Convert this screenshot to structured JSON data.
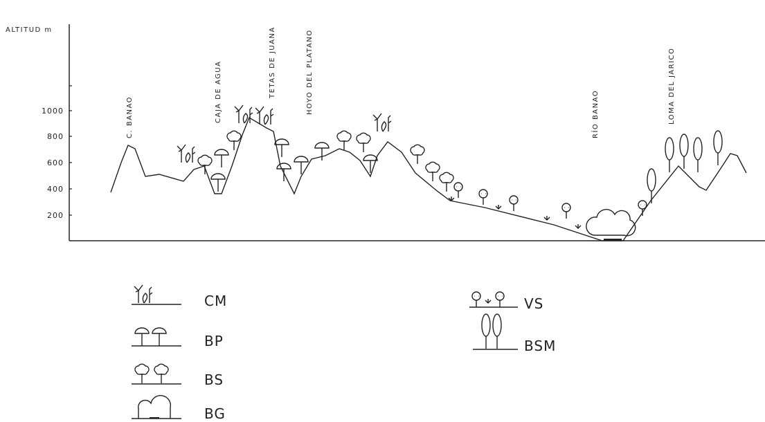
{
  "axis": {
    "label": "ALTITUD m",
    "ticks": [
      "1000",
      "800",
      "600",
      "400",
      "200"
    ]
  },
  "places": [
    "C. BANAO",
    "CAJA DE AGUA",
    "TETAS DE JUANA",
    "HOYO DEL PLATANO",
    "RÍO BANAO",
    "LOMA DEL JARICO"
  ],
  "legend": [
    "CM",
    "BP",
    "BS",
    "BG",
    "VS",
    "BSM"
  ]
}
